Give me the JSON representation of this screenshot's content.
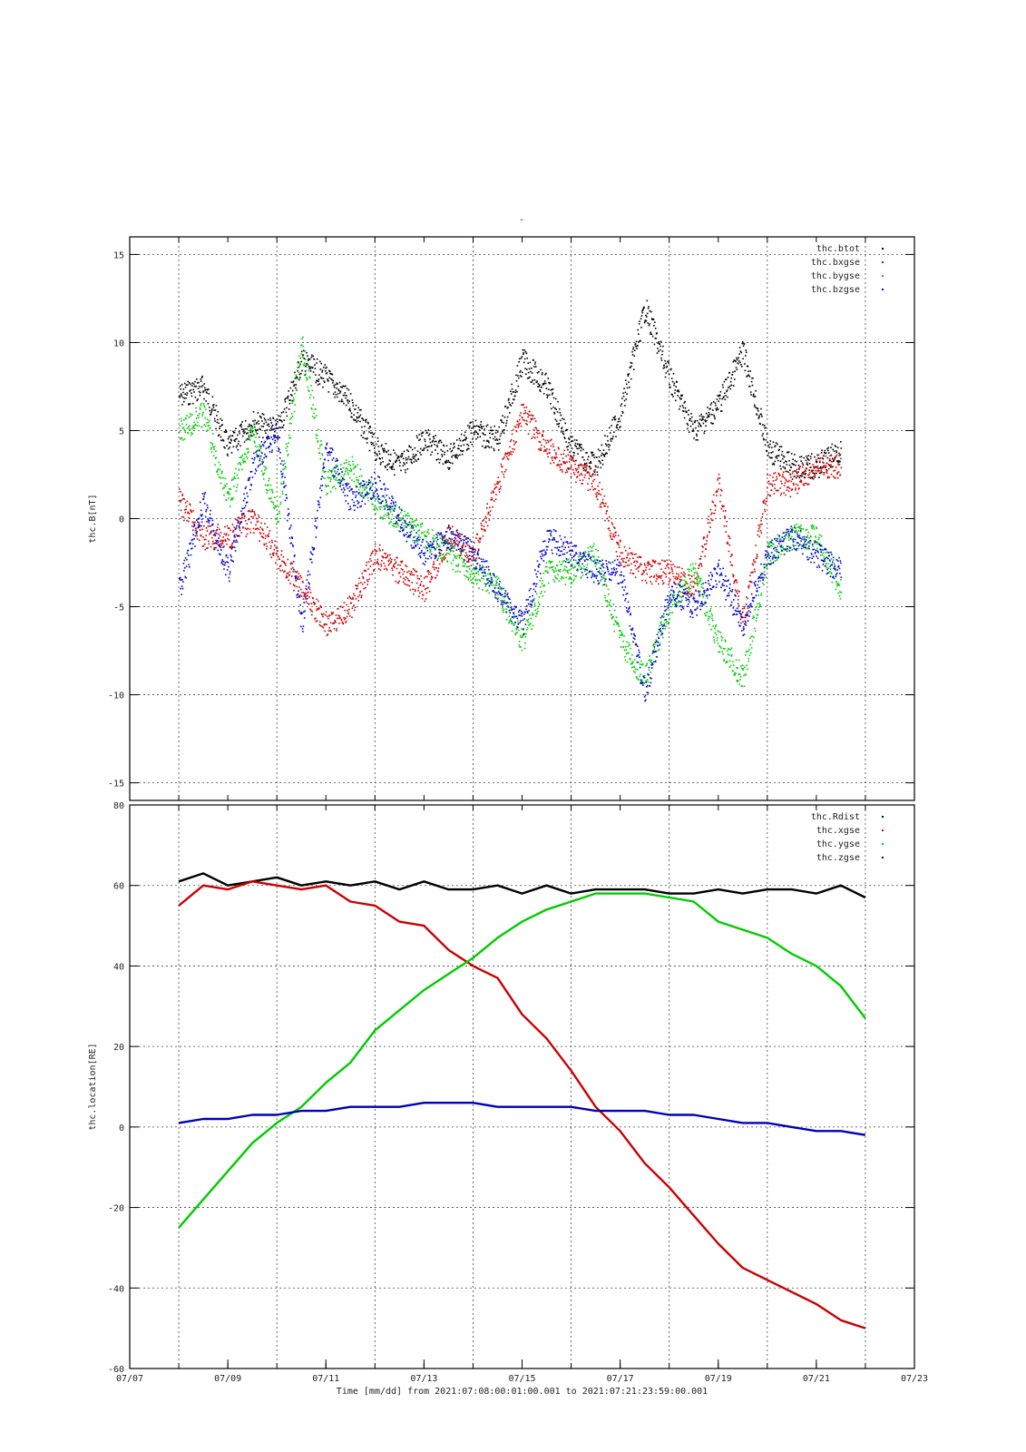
{
  "page": {
    "top_marker": "-"
  },
  "chart_data": [
    {
      "id": "magnetic-field",
      "type": "scatter",
      "title": "",
      "ylabel": "thc.B[nT]",
      "xlim": [
        "07/07",
        "07/23"
      ],
      "ylim": [
        -16,
        16
      ],
      "yticks": [
        -15,
        -10,
        -5,
        0,
        5,
        10,
        15
      ],
      "grid": true,
      "legend": "top-right",
      "series": [
        {
          "name": "thc.btot",
          "color": "#000000",
          "x": [
            "07/08",
            "07/08.5",
            "07/09",
            "07/09.5",
            "07/10",
            "07/10.5",
            "07/11",
            "07/11.5",
            "07/12",
            "07/12.5",
            "07/13",
            "07/13.5",
            "07/14",
            "07/14.5",
            "07/15",
            "07/15.5",
            "07/16",
            "07/16.5",
            "07/17",
            "07/17.5",
            "07/18",
            "07/18.5",
            "07/19",
            "07/19.5",
            "07/20",
            "07/20.5",
            "07/21",
            "07/21.5"
          ],
          "y": [
            7.0,
            7.5,
            4.0,
            5.5,
            5.0,
            9.0,
            8.0,
            6.5,
            4.0,
            3.0,
            4.5,
            3.5,
            5.0,
            4.5,
            9.0,
            7.5,
            4.0,
            3.0,
            6.0,
            12.0,
            8.0,
            5.0,
            6.5,
            9.5,
            4.0,
            3.0,
            3.0,
            4.0
          ]
        },
        {
          "name": "thc.bxgse",
          "color": "#cc0000",
          "x": [
            "07/08",
            "07/08.5",
            "07/09",
            "07/09.5",
            "07/10",
            "07/10.5",
            "07/11",
            "07/11.5",
            "07/12",
            "07/12.5",
            "07/13",
            "07/13.5",
            "07/14",
            "07/14.5",
            "07/15",
            "07/15.5",
            "07/16",
            "07/16.5",
            "07/17",
            "07/17.5",
            "07/18",
            "07/18.5",
            "07/19",
            "07/19.5",
            "07/20",
            "07/20.5",
            "07/21",
            "07/21.5"
          ],
          "y": [
            1.0,
            -1.0,
            -1.0,
            0.0,
            -2.0,
            -4.0,
            -6.0,
            -5.0,
            -2.0,
            -3.0,
            -4.0,
            -1.0,
            -2.0,
            2.0,
            6.0,
            4.0,
            3.0,
            2.0,
            -2.0,
            -3.0,
            -3.0,
            -4.0,
            2.0,
            -6.0,
            2.0,
            2.0,
            3.0,
            3.0
          ]
        },
        {
          "name": "thc.bygse",
          "color": "#00cc00",
          "x": [
            "07/08",
            "07/08.5",
            "07/09",
            "07/09.5",
            "07/10",
            "07/10.5",
            "07/11",
            "07/11.5",
            "07/12",
            "07/12.5",
            "07/13",
            "07/13.5",
            "07/14",
            "07/14.5",
            "07/15",
            "07/15.5",
            "07/16",
            "07/16.5",
            "07/17",
            "07/17.5",
            "07/18",
            "07/18.5",
            "07/19",
            "07/19.5",
            "07/20",
            "07/20.5",
            "07/21",
            "07/21.5"
          ],
          "y": [
            5.0,
            6.0,
            1.0,
            5.0,
            0.0,
            10.0,
            2.0,
            3.0,
            1.0,
            0.0,
            -1.0,
            -2.0,
            -3.0,
            -4.0,
            -7.0,
            -3.0,
            -3.0,
            -2.0,
            -7.0,
            -9.0,
            -5.0,
            -3.0,
            -7.0,
            -9.0,
            -2.0,
            -1.0,
            -1.0,
            -4.0
          ]
        },
        {
          "name": "thc.bzgse",
          "color": "#0000cc",
          "x": [
            "07/08",
            "07/08.5",
            "07/09",
            "07/09.5",
            "07/10",
            "07/10.5",
            "07/11",
            "07/11.5",
            "07/12",
            "07/12.5",
            "07/13",
            "07/13.5",
            "07/14",
            "07/14.5",
            "07/15",
            "07/15.5",
            "07/16",
            "07/16.5",
            "07/17",
            "07/17.5",
            "07/18",
            "07/18.5",
            "07/19",
            "07/19.5",
            "07/20",
            "07/20.5",
            "07/21",
            "07/21.5"
          ],
          "y": [
            -4.0,
            1.0,
            -3.0,
            3.0,
            5.0,
            -6.0,
            4.0,
            1.0,
            2.0,
            0.0,
            -2.0,
            -1.0,
            -2.0,
            -4.0,
            -6.0,
            -1.0,
            -2.0,
            -3.0,
            -3.0,
            -10.0,
            -4.0,
            -5.0,
            -3.0,
            -6.0,
            -2.0,
            -1.0,
            -2.0,
            -3.0
          ]
        }
      ]
    },
    {
      "id": "location",
      "type": "line",
      "title": "",
      "ylabel": "thc.location[RE]",
      "xlabel": "Time [mm/dd]  from 2021:07:08:00:01:00.001  to  2021:07:21:23:59:00.001",
      "xlim": [
        "07/07",
        "07/23"
      ],
      "xticks": [
        "07/07",
        "07/09",
        "07/11",
        "07/13",
        "07/15",
        "07/17",
        "07/19",
        "07/21",
        "07/23"
      ],
      "ylim": [
        -60,
        80
      ],
      "yticks": [
        -60,
        -40,
        -20,
        0,
        20,
        40,
        60,
        80
      ],
      "grid": true,
      "legend": "top-right",
      "series": [
        {
          "name": "thc.Rdist",
          "color": "#000000",
          "x": [
            "07/08",
            "07/08.5",
            "07/09",
            "07/09.5",
            "07/10",
            "07/10.5",
            "07/11",
            "07/11.5",
            "07/12",
            "07/12.5",
            "07/13",
            "07/13.5",
            "07/14",
            "07/14.5",
            "07/15",
            "07/15.5",
            "07/16",
            "07/16.5",
            "07/17",
            "07/17.5",
            "07/18",
            "07/18.5",
            "07/19",
            "07/19.5",
            "07/20",
            "07/20.5",
            "07/21",
            "07/21.5",
            "07/22"
          ],
          "y": [
            61,
            63,
            60,
            61,
            62,
            60,
            61,
            60,
            61,
            59,
            61,
            59,
            59,
            60,
            58,
            60,
            58,
            59,
            59,
            59,
            58,
            58,
            59,
            58,
            59,
            59,
            58,
            60,
            57
          ]
        },
        {
          "name": "thc.xgse",
          "color": "#cc0000",
          "x": [
            "07/08",
            "07/08.5",
            "07/09",
            "07/09.5",
            "07/10",
            "07/10.5",
            "07/11",
            "07/11.5",
            "07/12",
            "07/12.5",
            "07/13",
            "07/13.5",
            "07/14",
            "07/14.5",
            "07/15",
            "07/15.5",
            "07/16",
            "07/16.5",
            "07/17",
            "07/17.5",
            "07/18",
            "07/18.5",
            "07/19",
            "07/19.5",
            "07/20",
            "07/20.5",
            "07/21",
            "07/21.5",
            "07/22"
          ],
          "y": [
            55,
            60,
            59,
            61,
            60,
            59,
            60,
            56,
            55,
            51,
            50,
            44,
            40,
            37,
            28,
            22,
            14,
            5,
            -1,
            -9,
            -15,
            -22,
            -29,
            -35,
            -38,
            -41,
            -44,
            -48,
            -50
          ]
        },
        {
          "name": "thc.ygse",
          "color": "#00cc00",
          "x": [
            "07/08",
            "07/08.5",
            "07/09",
            "07/09.5",
            "07/10",
            "07/10.5",
            "07/11",
            "07/11.5",
            "07/12",
            "07/12.5",
            "07/13",
            "07/13.5",
            "07/14",
            "07/14.5",
            "07/15",
            "07/15.5",
            "07/16",
            "07/16.5",
            "07/17",
            "07/17.5",
            "07/18",
            "07/18.5",
            "07/19",
            "07/19.5",
            "07/20",
            "07/20.5",
            "07/21",
            "07/21.5",
            "07/22"
          ],
          "y": [
            -25,
            -18,
            -11,
            -4,
            1,
            5,
            11,
            16,
            24,
            29,
            34,
            38,
            42,
            47,
            51,
            54,
            56,
            58,
            58,
            58,
            57,
            56,
            51,
            49,
            47,
            43,
            40,
            35,
            27
          ]
        },
        {
          "name": "thc.zgse",
          "color": "#0000bb",
          "x": [
            "07/08",
            "07/08.5",
            "07/09",
            "07/09.5",
            "07/10",
            "07/10.5",
            "07/11",
            "07/11.5",
            "07/12",
            "07/12.5",
            "07/13",
            "07/13.5",
            "07/14",
            "07/14.5",
            "07/15",
            "07/15.5",
            "07/16",
            "07/16.5",
            "07/17",
            "07/17.5",
            "07/18",
            "07/18.5",
            "07/19",
            "07/19.5",
            "07/20",
            "07/20.5",
            "07/21",
            "07/21.5",
            "07/22"
          ],
          "y": [
            1,
            2,
            2,
            3,
            3,
            4,
            4,
            5,
            5,
            5,
            6,
            6,
            6,
            5,
            5,
            5,
            5,
            4,
            4,
            4,
            3,
            3,
            2,
            1,
            1,
            0,
            -1,
            -1,
            -2
          ]
        }
      ]
    }
  ]
}
